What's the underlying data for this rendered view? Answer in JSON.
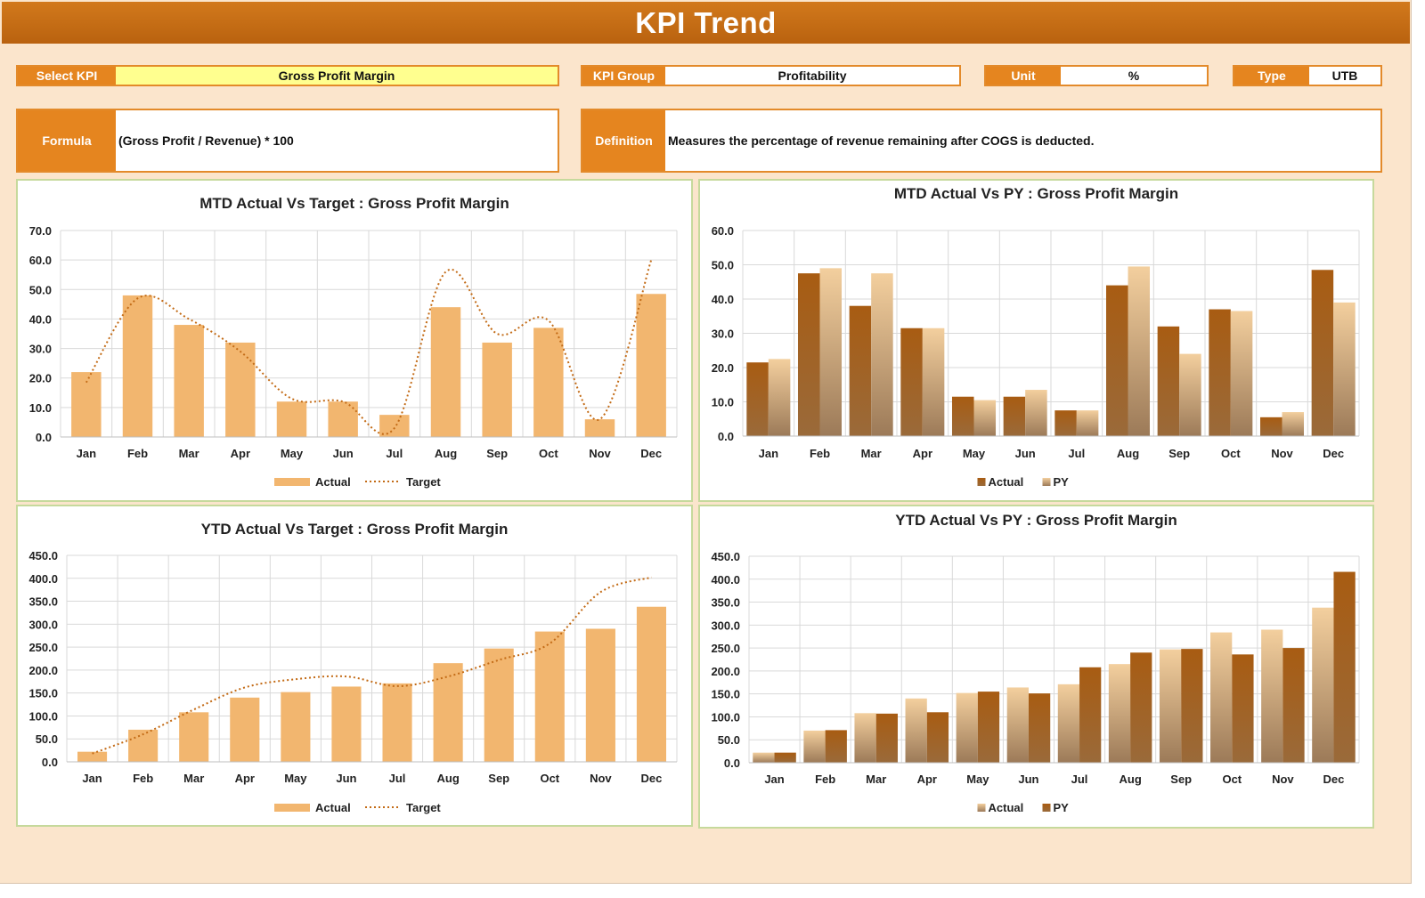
{
  "title": "KPI Trend",
  "selectors": {
    "select_kpi_label": "Select KPI",
    "select_kpi_value": "Gross Profit Margin",
    "kpi_group_label": "KPI Group",
    "kpi_group_value": "Profitability",
    "unit_label": "Unit",
    "unit_value": "%",
    "type_label": "Type",
    "type_value": "UTB"
  },
  "formula": {
    "label": "Formula",
    "value": "(Gross Profit / Revenue) * 100"
  },
  "definition": {
    "label": "Definition",
    "value": "Measures the percentage of revenue remaining after COGS is deducted."
  },
  "colors": {
    "header": "#c86d14",
    "label_orange": "#e5851f",
    "kpi_highlight": "#ffff8f",
    "panel_border": "#c6d99c",
    "bar_light": "#f2b66f",
    "bar_dark": "#a85c12",
    "bar_tan": "#e9c193",
    "target_line": "#c36b16"
  },
  "chart_data": [
    {
      "id": "mtd-target",
      "type": "bar",
      "title": "MTD Actual Vs Target : Gross Profit Margin",
      "categories": [
        "Jan",
        "Feb",
        "Mar",
        "Apr",
        "May",
        "Jun",
        "Jul",
        "Aug",
        "Sep",
        "Oct",
        "Nov",
        "Dec"
      ],
      "series": [
        {
          "name": "Actual",
          "kind": "bar",
          "values": [
            22.0,
            48.0,
            38.0,
            32.0,
            12.0,
            12.0,
            7.5,
            44.0,
            32.0,
            37.0,
            6.0,
            48.5
          ]
        },
        {
          "name": "Target",
          "kind": "line-dotted-smooth",
          "values": [
            18.5,
            47.0,
            40.0,
            29.0,
            13.0,
            12.0,
            3.0,
            56.0,
            35.0,
            39.5,
            6.0,
            60.0
          ]
        }
      ],
      "ylim": [
        0,
        70
      ],
      "yticks": [
        "0.0",
        "10.0",
        "20.0",
        "30.0",
        "40.0",
        "50.0",
        "60.0",
        "70.0"
      ],
      "legend": "bottom",
      "grid": true
    },
    {
      "id": "mtd-py",
      "type": "bar",
      "title": "MTD Actual Vs PY : Gross Profit Margin",
      "categories": [
        "Jan",
        "Feb",
        "Mar",
        "Apr",
        "May",
        "Jun",
        "Jul",
        "Aug",
        "Sep",
        "Oct",
        "Nov",
        "Dec"
      ],
      "series": [
        {
          "name": "Actual",
          "kind": "bar",
          "values": [
            21.5,
            47.5,
            38.0,
            31.5,
            11.5,
            11.5,
            7.5,
            44.0,
            32.0,
            37.0,
            5.5,
            48.5
          ]
        },
        {
          "name": "PY",
          "kind": "bar",
          "values": [
            22.5,
            49.0,
            47.5,
            31.5,
            10.5,
            13.5,
            7.5,
            49.5,
            24.0,
            36.5,
            7.0,
            39.0
          ]
        }
      ],
      "ylim": [
        0,
        60
      ],
      "yticks": [
        "0.0",
        "10.0",
        "20.0",
        "30.0",
        "40.0",
        "50.0",
        "60.0"
      ],
      "legend": "bottom",
      "grid": true
    },
    {
      "id": "ytd-target",
      "type": "bar",
      "title": "YTD Actual Vs Target : Gross Profit Margin",
      "categories": [
        "Jan",
        "Feb",
        "Mar",
        "Apr",
        "May",
        "Jun",
        "Jul",
        "Aug",
        "Sep",
        "Oct",
        "Nov",
        "Dec"
      ],
      "series": [
        {
          "name": "Actual",
          "kind": "bar",
          "values": [
            22,
            70,
            108,
            140,
            152,
            164,
            171,
            215,
            247,
            284,
            290,
            338
          ]
        },
        {
          "name": "Target",
          "kind": "line-dotted-smooth",
          "values": [
            18,
            60,
            114,
            162,
            180,
            186,
            165,
            186,
            222,
            258,
            370,
            402
          ]
        }
      ],
      "ylim": [
        0,
        450
      ],
      "yticks": [
        "0.0",
        "50.0",
        "100.0",
        "150.0",
        "200.0",
        "250.0",
        "300.0",
        "350.0",
        "400.0",
        "450.0"
      ],
      "legend": "bottom",
      "grid": true
    },
    {
      "id": "ytd-py",
      "type": "bar",
      "title": "YTD Actual Vs PY : Gross Profit Margin",
      "categories": [
        "Jan",
        "Feb",
        "Mar",
        "Apr",
        "May",
        "Jun",
        "Jul",
        "Aug",
        "Sep",
        "Oct",
        "Nov",
        "Dec"
      ],
      "series": [
        {
          "name": "Actual",
          "kind": "bar",
          "values": [
            22,
            70,
            108,
            140,
            152,
            164,
            171,
            215,
            247,
            284,
            290,
            338
          ]
        },
        {
          "name": "PY",
          "kind": "bar",
          "values": [
            22,
            71,
            107,
            110,
            155,
            151,
            208,
            240,
            248,
            236,
            250,
            416
          ]
        }
      ],
      "ylim": [
        0,
        450
      ],
      "yticks": [
        "0.0",
        "50.0",
        "100.0",
        "150.0",
        "200.0",
        "250.0",
        "300.0",
        "350.0",
        "400.0",
        "450.0"
      ],
      "legend": "bottom",
      "grid": true
    }
  ]
}
